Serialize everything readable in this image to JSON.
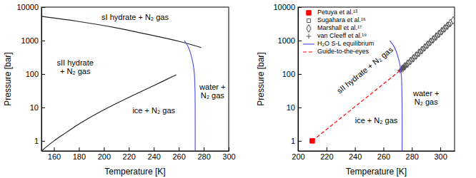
{
  "chart_data": [
    {
      "type": "line",
      "xlabel": "Temperature [K]",
      "ylabel": "Pressure [bar]",
      "xlim": [
        150,
        300
      ],
      "ylim": [
        0.5,
        10000
      ],
      "xticks": [
        160,
        180,
        200,
        220,
        240,
        260,
        280,
        300
      ],
      "yticks": [
        1,
        10,
        100,
        1000,
        10000
      ],
      "log": "y",
      "series": [
        {
          "type": "line",
          "color": "#222222",
          "line_style": "solid",
          "x": [
            150,
            180,
            210,
            240,
            260,
            278
          ],
          "values": [
            5300,
            3700,
            2400,
            1400,
            950,
            620
          ]
        },
        {
          "type": "line",
          "color": "#222222",
          "line_style": "solid",
          "x": [
            150,
            160,
            170,
            180,
            200,
            220,
            240,
            258
          ],
          "values": [
            0.5,
            1,
            1.8,
            3.2,
            8.5,
            20,
            45,
            95
          ]
        },
        {
          "type": "line",
          "color": "#5555ee",
          "line_style": "solid",
          "x": [
            264.5,
            268,
            270,
            271.5,
            272.5,
            273,
            273.15
          ],
          "values": [
            1000,
            600,
            350,
            200,
            100,
            30,
            0.5
          ]
        }
      ],
      "annotations": [
        {
          "text": "sI hydrate + N₂ gas",
          "x": 225,
          "y": 5000
        },
        {
          "text": "sII hydrate\n+ N₂ gas",
          "x": 177,
          "y": 160
        },
        {
          "text": "ice + N₂ gas",
          "x": 240,
          "y": 8
        },
        {
          "text": "water +\nN₂ gas",
          "x": 287,
          "y": 30
        }
      ]
    },
    {
      "type": "line",
      "xlabel": "Temperature [K]",
      "ylabel": "Pressure [bar]",
      "xlim": [
        200,
        310
      ],
      "ylim": [
        0.5,
        10000
      ],
      "xticks": [
        200,
        220,
        240,
        260,
        280,
        300
      ],
      "yticks": [
        1,
        10,
        100,
        1000,
        10000
      ],
      "log": "y",
      "legend": "upper left",
      "series": [
        {
          "name": "Petuya et al.¹³",
          "type": "scatter",
          "marker": "square",
          "color": "#ff0000",
          "x": [
            210
          ],
          "values": [
            1
          ]
        },
        {
          "name": "Sugahara et al.¹⁶",
          "type": "scatter",
          "marker": "square-open",
          "color": "#555555",
          "x": [
            274,
            276,
            278,
            280,
            282,
            284,
            286,
            288,
            290,
            292,
            294,
            296,
            298,
            300,
            302,
            304,
            306
          ],
          "values": [
            154,
            185,
            223,
            269,
            324,
            390,
            471,
            567,
            683,
            823,
            992,
            1196,
            1441,
            1736,
            2093,
            2521,
            3038
          ]
        },
        {
          "name": "Marshall et al.¹⁷",
          "type": "scatter",
          "marker": "diamond-open",
          "color": "#555555",
          "x": [
            273.5,
            275,
            277,
            279,
            281,
            283,
            285,
            287,
            289,
            291,
            293,
            295,
            297,
            299,
            301,
            303,
            305,
            307,
            309
          ],
          "values": [
            147,
            169,
            203,
            245,
            295,
            356,
            429,
            517,
            622,
            750,
            904,
            1089,
            1313,
            1582,
            1906,
            2297,
            2768,
            3335,
            4019
          ]
        },
        {
          "name": "van Cleeff et al.¹⁹",
          "type": "scatter",
          "marker": "plus",
          "color": "#555555",
          "x": [
            271.5,
            272,
            272.5,
            273,
            273.5,
            274,
            274.5,
            275,
            276
          ],
          "values": [
            125,
            130,
            135,
            142,
            148,
            153,
            158,
            165,
            178
          ]
        },
        {
          "name": "H₂O S-L equilibrium",
          "type": "line",
          "color": "#5555ee",
          "line_style": "solid",
          "x": [
            264.5,
            268,
            270,
            271.5,
            272.5,
            273,
            273.15
          ],
          "values": [
            1000,
            600,
            350,
            200,
            100,
            30,
            0.5
          ]
        },
        {
          "name": "Guide-to-the-eyes",
          "type": "line",
          "color": "#ff0000",
          "line_style": "dashed",
          "x": [
            210,
            273
          ],
          "values": [
            1,
            140
          ]
        }
      ],
      "annotations": [
        {
          "text": "sII hydrate + N₂ gas",
          "x": 247,
          "y": 130
        },
        {
          "text": "water +\nN₂ gas",
          "x": 290,
          "y": 20
        },
        {
          "text": "ice + N₂ gas",
          "x": 255,
          "y": 4
        }
      ]
    }
  ]
}
